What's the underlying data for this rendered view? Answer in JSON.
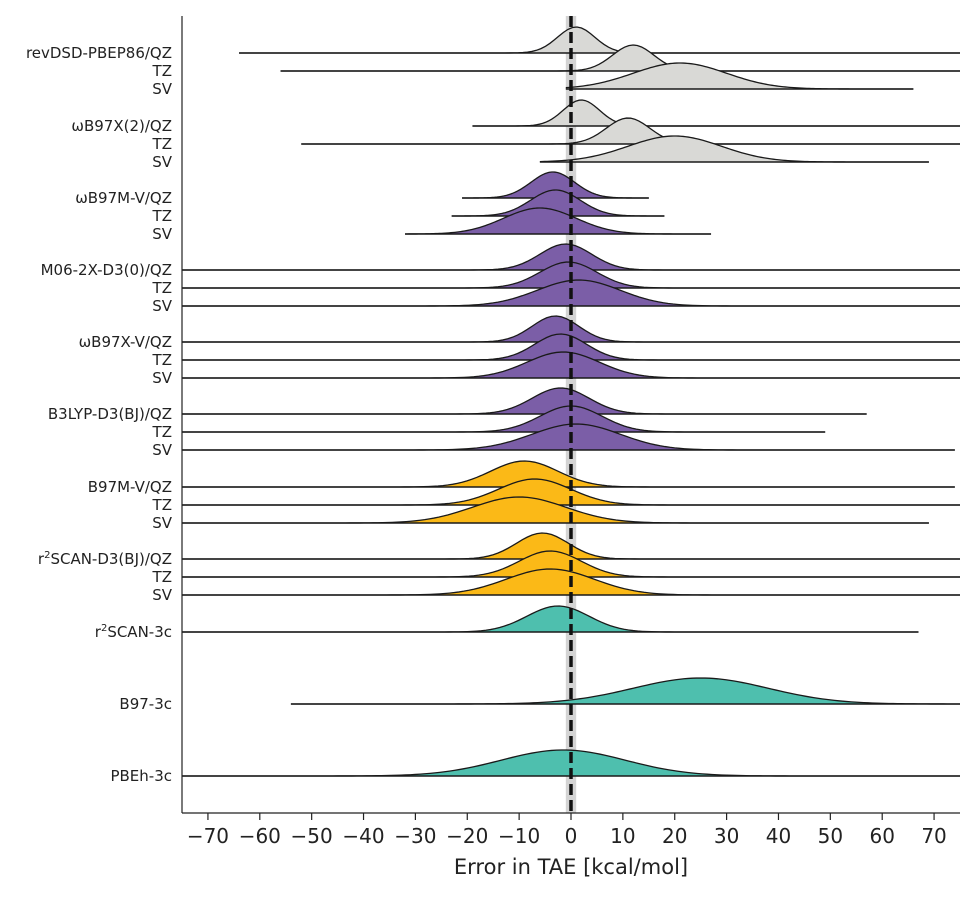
{
  "chart_data": {
    "type": "ridgeline",
    "xlabel": "Error in TAE [kcal/mol]",
    "xlim": [
      -75,
      75
    ],
    "xticks": [
      -70,
      -60,
      -50,
      -40,
      -30,
      -20,
      -10,
      0,
      10,
      20,
      30,
      40,
      50,
      60,
      70
    ],
    "xtick_labels": [
      "−70",
      "−60",
      "−50",
      "−40",
      "−30",
      "−20",
      "−10",
      "0",
      "10",
      "20",
      "30",
      "40",
      "50",
      "60",
      "70"
    ],
    "reference_line": 0,
    "reference_band": [
      -1,
      1
    ],
    "colors": {
      "gray": "#d9d9d6",
      "purple": "#7b5ea7",
      "yellow": "#fbb917",
      "teal": "#4ebfae"
    },
    "series": [
      {
        "label": "revDSD-PBEP86/QZ",
        "label_parts": [
          "revDSD-PBEP86/QZ"
        ],
        "color": "gray",
        "mean": 1,
        "sd": 3.6,
        "min": -64,
        "max": 75
      },
      {
        "label": "TZ",
        "label_parts": [
          "TZ"
        ],
        "color": "gray",
        "mean": 12,
        "sd": 4,
        "min": -56,
        "max": 75
      },
      {
        "label": "SV",
        "label_parts": [
          "SV"
        ],
        "color": "gray",
        "mean": 21,
        "sd": 9,
        "min": -1,
        "max": 66
      },
      {
        "label": "ωB97X(2)/QZ",
        "label_parts": [
          "ωB97X(2)/QZ"
        ],
        "color": "gray",
        "mean": 2,
        "sd": 3.5,
        "min": -19,
        "max": 75
      },
      {
        "label": "TZ",
        "label_parts": [
          "TZ"
        ],
        "color": "gray",
        "mean": 11,
        "sd": 4.2,
        "min": -52,
        "max": 75
      },
      {
        "label": "SV",
        "label_parts": [
          "SV"
        ],
        "color": "gray",
        "mean": 20,
        "sd": 9,
        "min": -6,
        "max": 69
      },
      {
        "label": "ωB97M-V/QZ",
        "label_parts": [
          "ωB97M-V/QZ"
        ],
        "color": "purple",
        "mean": -3.5,
        "sd": 4.2,
        "min": -21,
        "max": 15
      },
      {
        "label": "TZ",
        "label_parts": [
          "TZ"
        ],
        "color": "purple",
        "mean": -3,
        "sd": 4.8,
        "min": -23,
        "max": 18
      },
      {
        "label": "SV",
        "label_parts": [
          "SV"
        ],
        "color": "purple",
        "mean": -6,
        "sd": 7,
        "min": -32,
        "max": 27
      },
      {
        "label": "M06-2X-D3(0)/QZ",
        "label_parts": [
          "M06-2X-D3(0)/QZ"
        ],
        "color": "purple",
        "mean": -1,
        "sd": 5,
        "min": -75,
        "max": 75
      },
      {
        "label": "TZ",
        "label_parts": [
          "TZ"
        ],
        "color": "purple",
        "mean": -0.5,
        "sd": 5.5,
        "min": -75,
        "max": 75
      },
      {
        "label": "SV",
        "label_parts": [
          "SV"
        ],
        "color": "purple",
        "mean": 1.5,
        "sd": 8,
        "min": -75,
        "max": 75
      },
      {
        "label": "ωB97X-V/QZ",
        "label_parts": [
          "ωB97X-V/QZ"
        ],
        "color": "purple",
        "mean": -3,
        "sd": 4.5,
        "min": -75,
        "max": 75
      },
      {
        "label": "TZ",
        "label_parts": [
          "TZ"
        ],
        "color": "purple",
        "mean": -2,
        "sd": 5,
        "min": -75,
        "max": 75
      },
      {
        "label": "SV",
        "label_parts": [
          "SV"
        ],
        "color": "purple",
        "mean": -1.5,
        "sd": 7,
        "min": -75,
        "max": 75
      },
      {
        "label": "B3LYP-D3(BJ)/QZ",
        "label_parts": [
          "B3LYP-D3(BJ)/QZ"
        ],
        "color": "purple",
        "mean": -2,
        "sd": 5.5,
        "min": -75,
        "max": 57
      },
      {
        "label": "TZ",
        "label_parts": [
          "TZ"
        ],
        "color": "purple",
        "mean": 0,
        "sd": 6,
        "min": -75,
        "max": 49
      },
      {
        "label": "SV",
        "label_parts": [
          "SV"
        ],
        "color": "purple",
        "mean": 1,
        "sd": 8.5,
        "min": -75,
        "max": 74
      },
      {
        "label": "B97M-V/QZ",
        "label_parts": [
          "B97M-V/QZ"
        ],
        "color": "yellow",
        "mean": -9,
        "sd": 6.5,
        "min": -75,
        "max": 74
      },
      {
        "label": "TZ",
        "label_parts": [
          "TZ"
        ],
        "color": "yellow",
        "mean": -7,
        "sd": 7,
        "min": -75,
        "max": 75
      },
      {
        "label": "SV",
        "label_parts": [
          "SV"
        ],
        "color": "yellow",
        "mean": -10,
        "sd": 9,
        "min": -75,
        "max": 69
      },
      {
        "label": "r²SCAN-D3(BJ)/QZ",
        "label_parts": [
          "r",
          "2",
          "SCAN-D3(BJ)/QZ"
        ],
        "color": "yellow",
        "mean": -5.5,
        "sd": 5,
        "min": -75,
        "max": 75
      },
      {
        "label": "TZ",
        "label_parts": [
          "TZ"
        ],
        "color": "yellow",
        "mean": -4,
        "sd": 6,
        "min": -75,
        "max": 75
      },
      {
        "label": "SV",
        "label_parts": [
          "SV"
        ],
        "color": "yellow",
        "mean": -4,
        "sd": 8.5,
        "min": -75,
        "max": 75
      },
      {
        "label": "r²SCAN-3c",
        "label_parts": [
          "r",
          "2",
          "SCAN-3c"
        ],
        "color": "teal",
        "mean": -2.5,
        "sd": 6,
        "min": -75,
        "max": 67
      },
      {
        "label": "B97-3c",
        "label_parts": [
          "B97-3c"
        ],
        "color": "teal",
        "mean": 25,
        "sd": 13,
        "min": -54,
        "max": 75
      },
      {
        "label": "PBEh-3c",
        "label_parts": [
          "PBEh-3c"
        ],
        "color": "teal",
        "mean": -1.5,
        "sd": 12,
        "min": -75,
        "max": 75
      }
    ]
  }
}
